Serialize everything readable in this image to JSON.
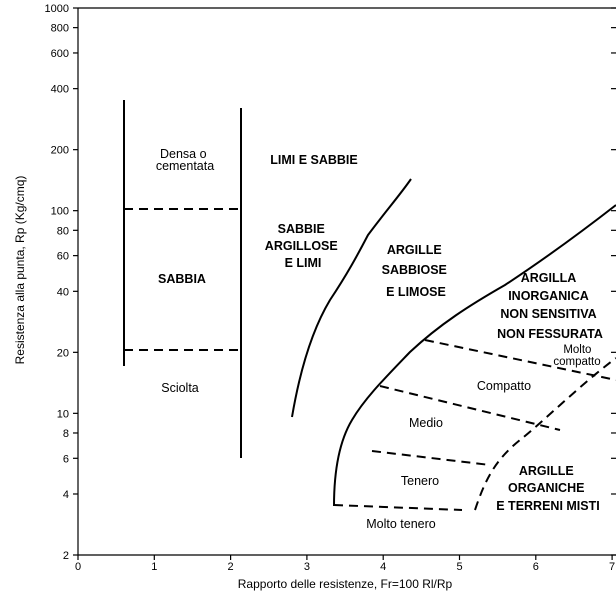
{
  "chart_data": {
    "type": "diagram",
    "xlabel": "Rapporto delle resistenze, Fr=100 Rl/Rp",
    "ylabel": "Resistenza alla punta, Rp (Kg/cmq)",
    "x_ticks": [
      "0",
      "1",
      "2",
      "3",
      "4",
      "5",
      "6",
      "7"
    ],
    "y_ticks": [
      "1000",
      "800",
      "600",
      "400",
      "200",
      "100",
      "80",
      "60",
      "40",
      "20",
      "10",
      "8",
      "6",
      "4",
      "2"
    ],
    "y_tick_values": [
      1000,
      800,
      600,
      400,
      200,
      100,
      80,
      60,
      40,
      20,
      10,
      8,
      6,
      4,
      2
    ],
    "xlim": [
      0,
      7
    ],
    "ylim": [
      2,
      1000
    ],
    "y_scale": "log",
    "regions": {
      "densa": [
        "Densa o",
        "cementata"
      ],
      "sabbia": "SABBIA",
      "sciolta": "Sciolta",
      "limi_sabbie": "LIMI E SABBIE",
      "sabbie_argillose": [
        "SABBIE",
        "ARGILLOSE",
        "E LIMI"
      ],
      "argille_sabbiose": [
        "ARGILLE",
        "SABBIOSE",
        "E LIMOSE"
      ],
      "argilla_inorganica": [
        "ARGILLA",
        "INORGANICA",
        "NON SENSITIVA",
        "NON FESSURATA"
      ],
      "molto_compatto": [
        "Molto",
        "compatto"
      ],
      "compatto": "Compatto",
      "medio": "Medio",
      "tenero": "Tenero",
      "molto_tenero": "Molto tenero",
      "argille_organiche": [
        "ARGILLE",
        "ORGANICHE",
        "E TERRENI MISTI"
      ]
    }
  }
}
